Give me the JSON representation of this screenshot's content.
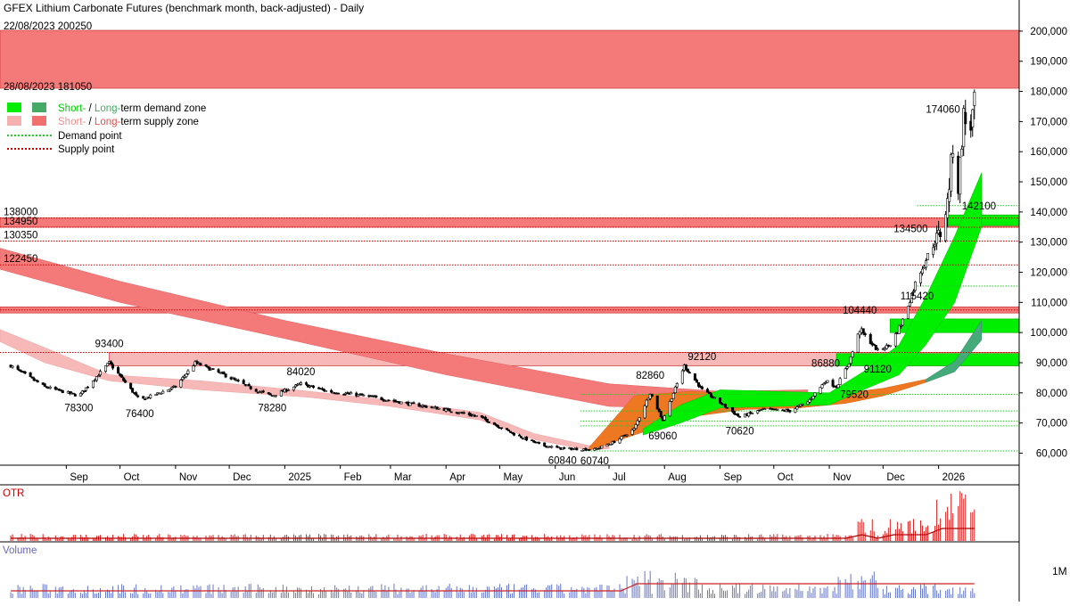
{
  "chart_data": {
    "type": "candlestick",
    "title": "GFEX Lithium Carbonate Futures (benchmark month, back-adjusted) - Daily",
    "ylim": [
      56000,
      205000
    ],
    "y_ticks": [
      60000,
      70000,
      80000,
      90000,
      100000,
      110000,
      120000,
      130000,
      140000,
      150000,
      160000,
      170000,
      180000,
      190000,
      200000
    ],
    "y_tick_labels": [
      "60,000",
      "70,000",
      "80,000",
      "90,000",
      "100,000",
      "110,000",
      "120,000",
      "130,000",
      "140,000",
      "150,000",
      "160,000",
      "170,000",
      "180,000",
      "190,000",
      "200,000"
    ],
    "x_labels": [
      "Sep",
      "Oct",
      "Nov",
      "Dec",
      "2025",
      "Feb",
      "Mar",
      "Apr",
      "May",
      "Jun",
      "Jul",
      "Aug",
      "Sep",
      "Oct",
      "Nov",
      "Dec",
      "2026"
    ],
    "legend": [
      {
        "label_parts": [
          "Short-",
          " / ",
          "Long-",
          "term demand zone"
        ],
        "colors": [
          "#00ee00",
          "#44aa66"
        ]
      },
      {
        "label_parts": [
          "Short-",
          " / ",
          "Long-",
          "term supply zone"
        ],
        "colors": [
          "#f5b0b0",
          "#f07070"
        ]
      },
      {
        "label": "Demand point",
        "color": "#22cc22"
      },
      {
        "label": "Supply point",
        "color": "#cc0000"
      }
    ],
    "zone_labels": {
      "top": "22/08/2023 200250",
      "bottom": "28/08/2023 181050"
    },
    "supply_zones": [
      {
        "from": 181050,
        "to": 200250,
        "kind": "long"
      },
      {
        "from": 134950,
        "to": 138000,
        "kind": "long"
      },
      {
        "from": 106500,
        "to": 108500,
        "kind": "long"
      },
      {
        "from": 89000,
        "to": 93400,
        "kind": "short"
      }
    ],
    "supply_points": [
      138000,
      134950,
      130350,
      122450,
      107500,
      93400
    ],
    "supply_point_labels": [
      "138000",
      "134950",
      "130350",
      "122450"
    ],
    "demand_zones": [
      {
        "from": 135500,
        "to": 139000,
        "start_date": "2026-01"
      },
      {
        "from": 100000,
        "to": 104500,
        "start_date": "2025-12"
      },
      {
        "from": 89000,
        "to": 93000,
        "start_date": "2025-11"
      }
    ],
    "demand_points": [
      142100,
      115420,
      79520,
      74000,
      70620,
      69060,
      60740
    ],
    "annotations": [
      {
        "text": "93400",
        "date": "2024-09-25",
        "price": 93400,
        "pos": "above"
      },
      {
        "text": "78300",
        "date": "2024-09-08",
        "price": 78300,
        "pos": "below"
      },
      {
        "text": "76400",
        "date": "2024-10-12",
        "price": 76400,
        "pos": "below"
      },
      {
        "text": "84020",
        "date": "2025-01-10",
        "price": 84020,
        "pos": "above"
      },
      {
        "text": "78280",
        "date": "2024-12-25",
        "price": 78280,
        "pos": "below"
      },
      {
        "text": "60840",
        "date": "2025-06-05",
        "price": 60840,
        "pos": "below"
      },
      {
        "text": "60740",
        "date": "2025-06-23",
        "price": 60740,
        "pos": "below"
      },
      {
        "text": "82860",
        "date": "2025-07-24",
        "price": 82860,
        "pos": "above"
      },
      {
        "text": "92120",
        "date": "2025-08-12",
        "price": 92120,
        "pos": "right"
      },
      {
        "text": "69060",
        "date": "2025-07-31",
        "price": 69060,
        "pos": "below"
      },
      {
        "text": "70620",
        "date": "2025-09-12",
        "price": 70620,
        "pos": "below"
      },
      {
        "text": "86880",
        "date": "2025-10-30",
        "price": 86880,
        "pos": "above"
      },
      {
        "text": "79520",
        "date": "2025-11-05",
        "price": 79520,
        "pos": "right"
      },
      {
        "text": "104440",
        "date": "2025-11-18",
        "price": 104440,
        "pos": "above"
      },
      {
        "text": "91120",
        "date": "2025-11-28",
        "price": 91120,
        "pos": "below"
      },
      {
        "text": "115420",
        "date": "2025-12-20",
        "price": 115420,
        "pos": "below"
      },
      {
        "text": "134500",
        "date": "2025-12-28",
        "price": 134500,
        "pos": "left"
      },
      {
        "text": "142100",
        "date": "2026-01-12",
        "price": 142100,
        "pos": "right"
      },
      {
        "text": "174060",
        "date": "2026-01-15",
        "price": 174060,
        "pos": "left"
      }
    ],
    "series": [
      {
        "name": "Daily",
        "points": [
          {
            "date": "2024-08-01",
            "close": 89000
          },
          {
            "date": "2024-08-20",
            "close": 82000
          },
          {
            "date": "2024-09-08",
            "close": 79000
          },
          {
            "date": "2024-09-25",
            "close": 90000
          },
          {
            "date": "2024-10-12",
            "close": 77500
          },
          {
            "date": "2024-11-01",
            "close": 82000
          },
          {
            "date": "2024-11-12",
            "close": 90000
          },
          {
            "date": "2024-11-28",
            "close": 86000
          },
          {
            "date": "2024-12-15",
            "close": 81000
          },
          {
            "date": "2024-12-25",
            "close": 79000
          },
          {
            "date": "2025-01-10",
            "close": 83000
          },
          {
            "date": "2025-01-25",
            "close": 80500
          },
          {
            "date": "2025-02-15",
            "close": 79000
          },
          {
            "date": "2025-03-10",
            "close": 76500
          },
          {
            "date": "2025-03-31",
            "close": 74500
          },
          {
            "date": "2025-04-20",
            "close": 72000
          },
          {
            "date": "2025-05-10",
            "close": 66000
          },
          {
            "date": "2025-05-25",
            "close": 62500
          },
          {
            "date": "2025-06-05",
            "close": 61500
          },
          {
            "date": "2025-06-23",
            "close": 61200
          },
          {
            "date": "2025-07-05",
            "close": 64000
          },
          {
            "date": "2025-07-15",
            "close": 68000
          },
          {
            "date": "2025-07-24",
            "close": 80000
          },
          {
            "date": "2025-07-31",
            "close": 71000
          },
          {
            "date": "2025-08-12",
            "close": 89000
          },
          {
            "date": "2025-08-22",
            "close": 81000
          },
          {
            "date": "2025-09-05",
            "close": 75000
          },
          {
            "date": "2025-09-12",
            "close": 72000
          },
          {
            "date": "2025-09-25",
            "close": 74500
          },
          {
            "date": "2025-10-10",
            "close": 74000
          },
          {
            "date": "2025-10-20",
            "close": 77000
          },
          {
            "date": "2025-10-30",
            "close": 84000
          },
          {
            "date": "2025-11-05",
            "close": 82000
          },
          {
            "date": "2025-11-12",
            "close": 90000
          },
          {
            "date": "2025-11-18",
            "close": 101000
          },
          {
            "date": "2025-11-28",
            "close": 94000
          },
          {
            "date": "2025-12-05",
            "close": 96000
          },
          {
            "date": "2025-12-12",
            "close": 104000
          },
          {
            "date": "2025-12-20",
            "close": 118000
          },
          {
            "date": "2025-12-28",
            "close": 128000
          },
          {
            "date": "2026-01-02",
            "close": 133000
          },
          {
            "date": "2026-01-06",
            "close": 143000
          },
          {
            "date": "2026-01-09",
            "close": 162000
          },
          {
            "date": "2026-01-12",
            "close": 148000
          },
          {
            "date": "2026-01-15",
            "close": 172000
          },
          {
            "date": "2026-01-18",
            "close": 165000
          },
          {
            "date": "2026-01-21",
            "close": 176000
          }
        ]
      }
    ],
    "panels": [
      {
        "name": "OTR",
        "type": "bar"
      },
      {
        "name": "Volume",
        "type": "bar",
        "tick_label": "1M"
      }
    ]
  }
}
